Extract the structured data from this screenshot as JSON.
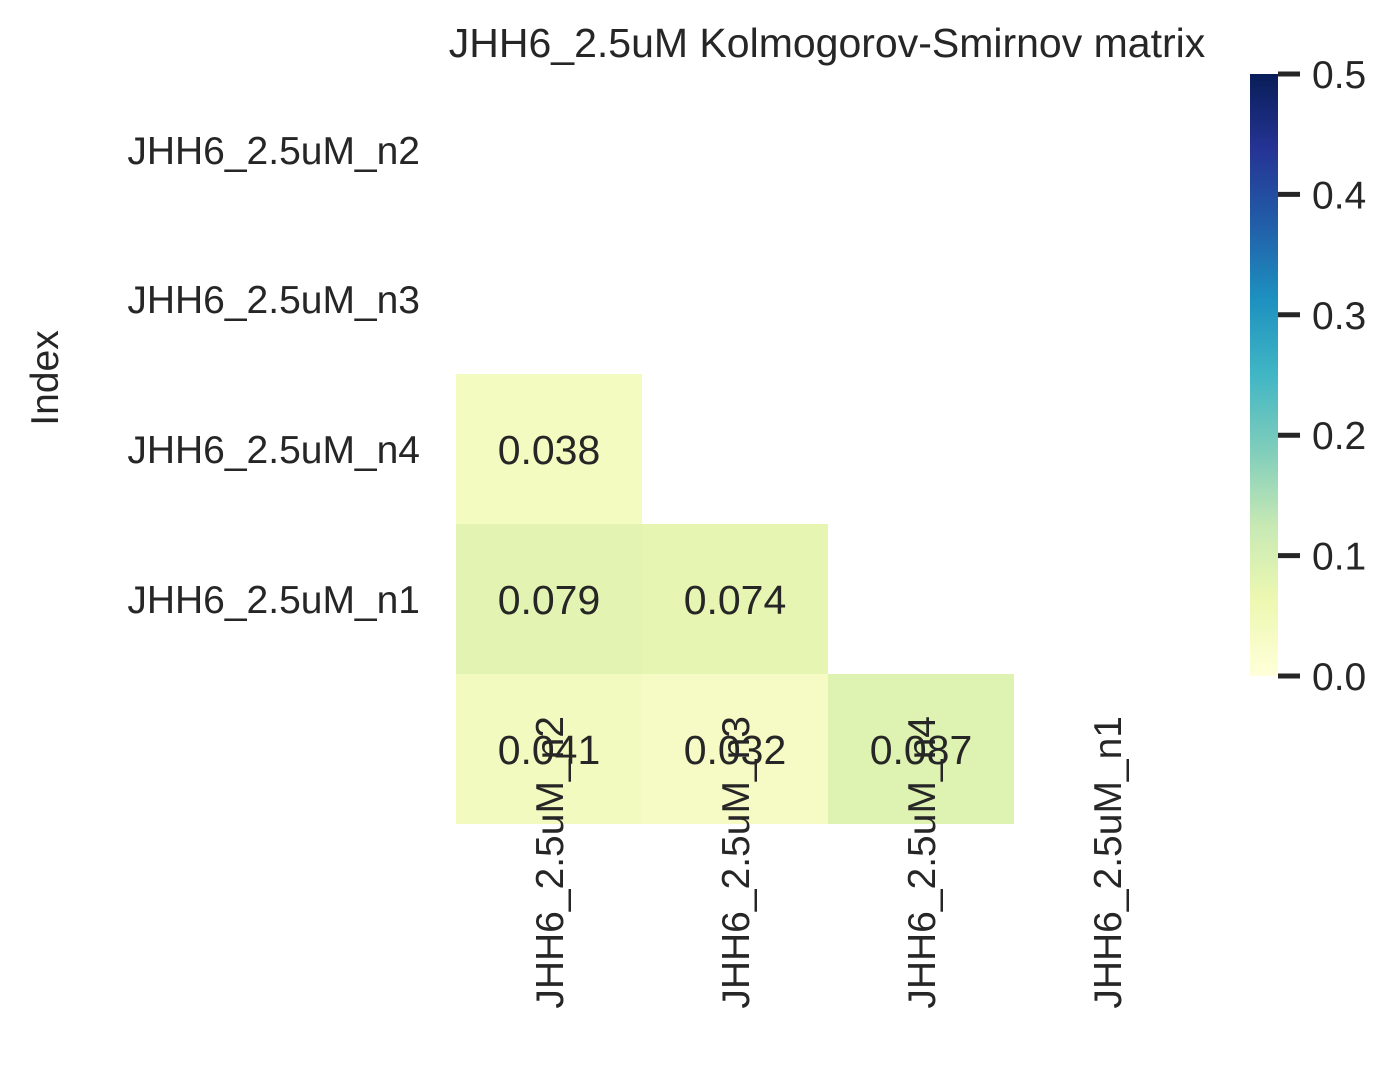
{
  "chart_data": {
    "type": "heatmap",
    "title": "JHH6_2.5uM Kolmogorov-Smirnov matrix",
    "xlabel": "",
    "ylabel": "Index",
    "row_labels": [
      "JHH6_2.5uM_n2",
      "JHH6_2.5uM_n3",
      "JHH6_2.5uM_n4",
      "JHH6_2.5uM_n1"
    ],
    "col_labels": [
      "JHH6_2.5uM_n2",
      "JHH6_2.5uM_n3",
      "JHH6_2.5uM_n4",
      "JHH6_2.5uM_n1"
    ],
    "values": [
      [
        null,
        null,
        null,
        null
      ],
      [
        0.038,
        null,
        null,
        null
      ],
      [
        0.079,
        0.074,
        null,
        null
      ],
      [
        0.041,
        0.032,
        0.087,
        null
      ]
    ],
    "value_labels": [
      [
        null,
        null,
        null,
        null
      ],
      [
        "0.038",
        null,
        null,
        null
      ],
      [
        "0.079",
        "0.074",
        null,
        null
      ],
      [
        "0.041",
        "0.032",
        "0.087",
        null
      ]
    ],
    "masked": "upper triangle incl. diagonal",
    "colormap": "YlGnBu",
    "colorbar": {
      "range": [
        0.0,
        0.5
      ],
      "ticks": [
        0.0,
        0.1,
        0.2,
        0.3,
        0.4,
        0.5
      ],
      "tick_labels": [
        "0.0",
        "0.1",
        "0.2",
        "0.3",
        "0.4",
        "0.5"
      ]
    },
    "grid": false
  }
}
